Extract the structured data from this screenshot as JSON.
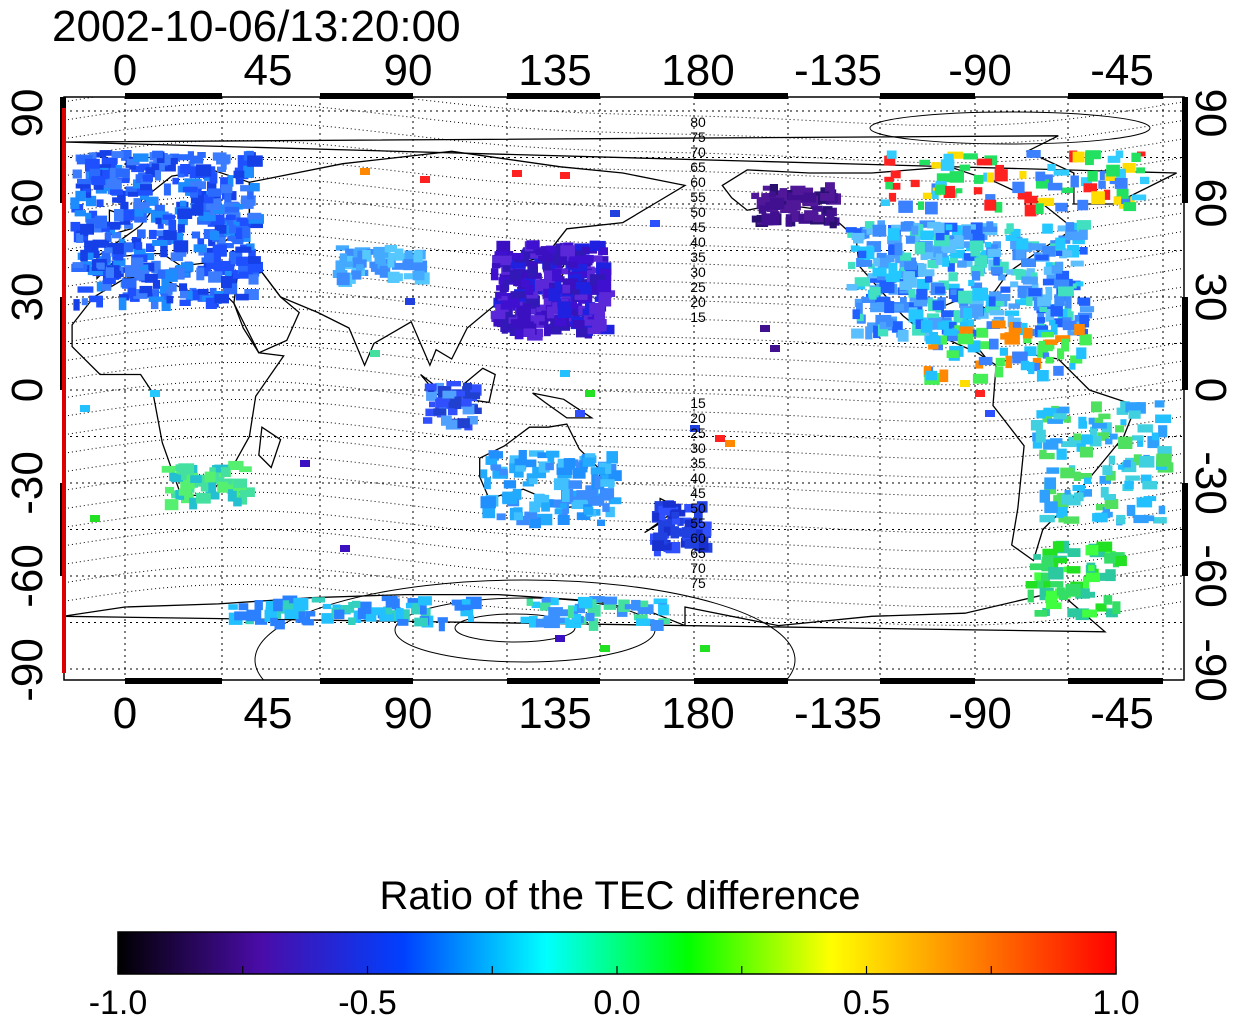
{
  "title": "2002-10-06/13:20:00",
  "colorbar": {
    "title": "Ratio of the TEC difference",
    "tick_labels": [
      "-1.0",
      "-0.5",
      "0.0",
      "0.5",
      "1.0"
    ],
    "stops": [
      "#000000",
      "#4a0ca8",
      "#0040ff",
      "#00ffff",
      "#00ff00",
      "#ffff00",
      "#ff8000",
      "#ff0000"
    ]
  },
  "map": {
    "x_tick_labels": [
      "0",
      "45",
      "90",
      "135",
      "180",
      "-135",
      "-90",
      "-45"
    ],
    "y_tick_labels": [
      "90",
      "60",
      "30",
      "0",
      "-30",
      "-60",
      "-90"
    ],
    "north_contour_labels": [
      "80",
      "75",
      "70",
      "65",
      "60",
      "55",
      "50",
      "45",
      "40",
      "35",
      "30",
      "25",
      "20",
      "15"
    ],
    "south_contour_labels": [
      "15",
      "20",
      "25",
      "30",
      "35",
      "40",
      "45",
      "50",
      "55",
      "60",
      "65",
      "70",
      "75"
    ],
    "accent_line_color": "#dd0000"
  }
}
